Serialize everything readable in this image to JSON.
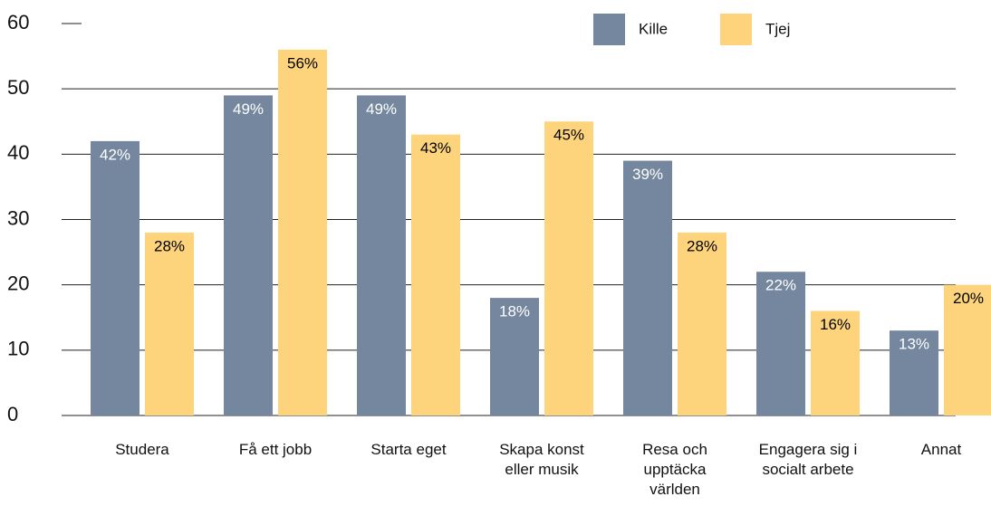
{
  "chart_data": {
    "type": "bar",
    "categories": [
      "Studera",
      "Få ett jobb",
      "Starta eget",
      "Skapa konst\neller musik",
      "Resa och\nupptäcka\nvärlden",
      "Engagera sig i\nsocialt arbete",
      "Annat"
    ],
    "series": [
      {
        "name": "Kille",
        "color": "#74879e",
        "values": [
          42,
          49,
          49,
          18,
          39,
          22,
          13
        ],
        "value_labels": [
          "42%",
          "49%",
          "49%",
          "18%",
          "39%",
          "22%",
          "13%"
        ],
        "label_color": "#ffffff"
      },
      {
        "name": "Tjej",
        "color": "#fdd47b",
        "values": [
          28,
          56,
          43,
          45,
          28,
          16,
          20
        ],
        "value_labels": [
          "28%",
          "56%",
          "43%",
          "45%",
          "28%",
          "16%",
          "20%"
        ],
        "label_color": "#000000"
      }
    ],
    "ylim": [
      0,
      60
    ],
    "yticks": [
      0,
      10,
      20,
      30,
      40,
      50,
      60
    ],
    "grid": true,
    "legend": "top-right"
  }
}
